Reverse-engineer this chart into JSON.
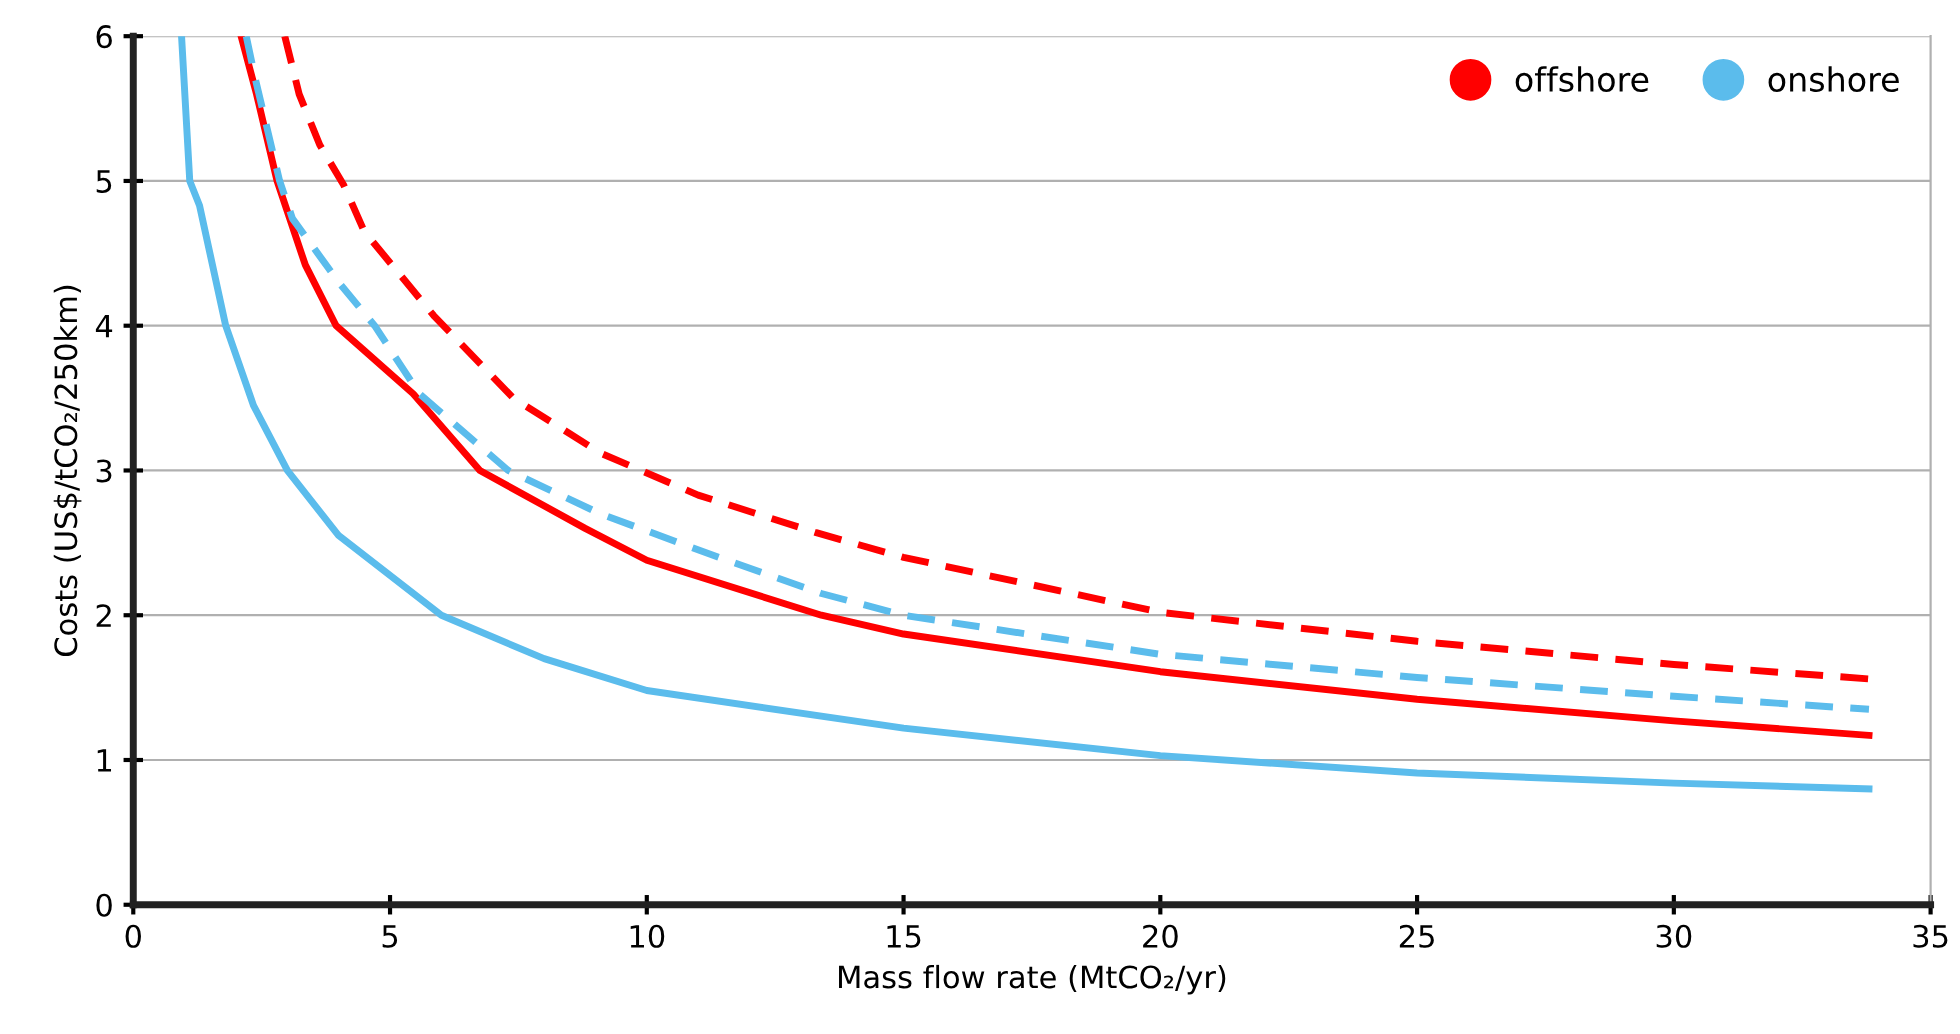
{
  "chart_data": {
    "type": "line",
    "xlabel": "Mass flow rate (MtCO₂/yr)",
    "ylabel": "Costs (US$/tCO₂/250km)",
    "xlim": [
      0,
      35
    ],
    "ylim": [
      0,
      6
    ],
    "xticks": [
      0,
      5,
      10,
      15,
      20,
      25,
      30,
      35
    ],
    "yticks": [
      0,
      1,
      2,
      3,
      4,
      5,
      6
    ],
    "grid": "y",
    "legend": "top right",
    "marker": "none",
    "series": [
      {
        "name": "offshore",
        "color": "#ff0000",
        "line_style": "solid",
        "x": [
          2.1,
          2.4,
          2.8,
          3.35,
          3.95,
          5.45,
          6.75,
          8.8,
          10,
          13.4,
          15,
          20,
          25,
          30,
          33.8
        ],
        "values": [
          6,
          5.6,
          5,
          4.42,
          4,
          3.53,
          3,
          2.6,
          2.38,
          2,
          1.87,
          1.61,
          1.42,
          1.27,
          1.17
        ]
      },
      {
        "color": "#ff0000",
        "line_style": "dashed",
        "x": [
          2.95,
          3.23,
          3.63,
          4.1,
          4.5,
          5.2,
          5.85,
          7.4,
          9.1,
          11,
          13.3,
          15,
          20,
          25,
          30,
          33.8
        ],
        "values": [
          6,
          5.6,
          5.25,
          4.97,
          4.65,
          4.35,
          4.07,
          3.5,
          3.12,
          2.83,
          2.57,
          2.4,
          2.02,
          1.82,
          1.66,
          1.56
        ]
      },
      {
        "color": "#5bbcec",
        "line_style": "dashed",
        "x": [
          2.2,
          2.38,
          2.85,
          3.1,
          4.0,
          4.7,
          5.57,
          7.3,
          9.1,
          11.4,
          13.4,
          15,
          20,
          25,
          30,
          33.8
        ],
        "values": [
          6,
          5.7,
          5,
          4.74,
          4.3,
          4,
          3.53,
          3,
          2.7,
          2.4,
          2.15,
          2,
          1.73,
          1.57,
          1.44,
          1.35
        ]
      },
      {
        "name": "onshore",
        "color": "#5bbcec",
        "line_style": "solid",
        "x": [
          0.94,
          1.1,
          1.29,
          1.8,
          2.34,
          3.0,
          4.0,
          6.0,
          8,
          10,
          15,
          20,
          25,
          30,
          33.8
        ],
        "values": [
          6,
          5,
          4.83,
          4,
          3.45,
          3,
          2.55,
          2,
          1.7,
          1.48,
          1.22,
          1.03,
          0.91,
          0.84,
          0.8
        ]
      }
    ]
  }
}
